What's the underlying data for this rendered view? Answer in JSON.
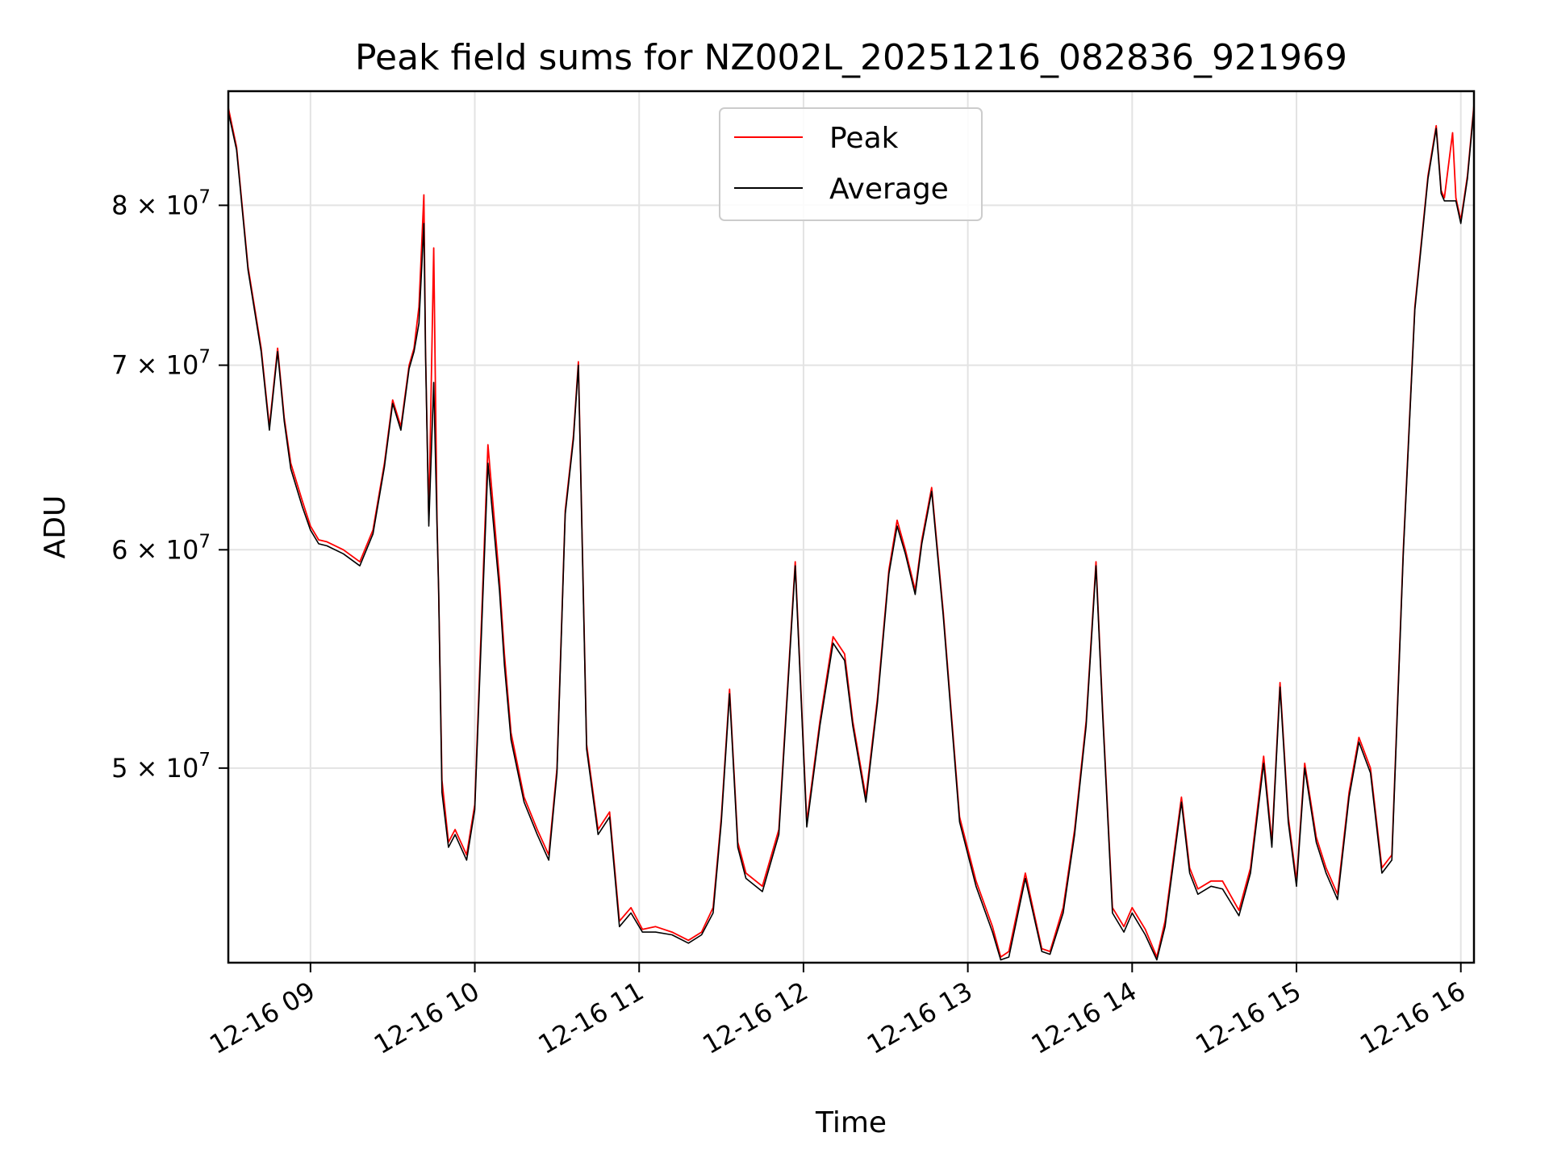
{
  "chart_data": {
    "type": "line",
    "title": "Peak field sums for NZ002L_20251216_082836_921969",
    "xlabel": "Time",
    "ylabel": "ADU",
    "yscale": "log",
    "ylim": [
      42500000,
      88000000
    ],
    "xlim": [
      8.5,
      16.08
    ],
    "grid": true,
    "legend_position": "top-center",
    "x_ticks": [
      {
        "value": 9,
        "label": "12-16 09"
      },
      {
        "value": 10,
        "label": "12-16 10"
      },
      {
        "value": 11,
        "label": "12-16 11"
      },
      {
        "value": 12,
        "label": "12-16 12"
      },
      {
        "value": 13,
        "label": "12-16 13"
      },
      {
        "value": 14,
        "label": "12-16 14"
      },
      {
        "value": 15,
        "label": "12-16 15"
      },
      {
        "value": 16,
        "label": "12-16 16"
      }
    ],
    "y_ticks": [
      {
        "value": 50000000,
        "base": "5",
        "exp": "7"
      },
      {
        "value": 60000000,
        "base": "6",
        "exp": "7"
      },
      {
        "value": 70000000,
        "base": "7",
        "exp": "7"
      },
      {
        "value": 80000000,
        "base": "8",
        "exp": "7"
      }
    ],
    "series": [
      {
        "name": "Peak",
        "color": "#ff0000",
        "x": [
          8.5,
          8.55,
          8.62,
          8.7,
          8.75,
          8.8,
          8.84,
          8.88,
          8.95,
          9.0,
          9.05,
          9.1,
          9.2,
          9.3,
          9.38,
          9.45,
          9.5,
          9.55,
          9.6,
          9.63,
          9.66,
          9.69,
          9.7,
          9.72,
          9.75,
          9.77,
          9.78,
          9.8,
          9.84,
          9.88,
          9.95,
          10.0,
          10.08,
          10.15,
          10.18,
          10.22,
          10.3,
          10.38,
          10.45,
          10.5,
          10.55,
          10.6,
          10.63,
          10.68,
          10.75,
          10.82,
          10.88,
          10.95,
          11.02,
          11.1,
          11.2,
          11.3,
          11.38,
          11.45,
          11.5,
          11.55,
          11.6,
          11.65,
          11.75,
          11.85,
          11.95,
          12.02,
          12.1,
          12.18,
          12.25,
          12.3,
          12.38,
          12.45,
          12.52,
          12.57,
          12.62,
          12.68,
          12.72,
          12.78,
          12.85,
          12.95,
          13.05,
          13.15,
          13.2,
          13.25,
          13.35,
          13.45,
          13.5,
          13.58,
          13.65,
          13.72,
          13.78,
          13.82,
          13.88,
          13.95,
          14.0,
          14.08,
          14.15,
          14.2,
          14.3,
          14.35,
          14.4,
          14.48,
          14.55,
          14.65,
          14.72,
          14.8,
          14.85,
          14.9,
          14.95,
          15.0,
          15.05,
          15.12,
          15.18,
          15.25,
          15.32,
          15.38,
          15.45,
          15.52,
          15.58,
          15.65,
          15.72,
          15.8,
          15.85,
          15.88,
          15.9,
          15.95,
          15.97,
          16.0,
          16.04,
          16.08
        ],
        "y": [
          86800000,
          84000000,
          76000000,
          71000000,
          66500000,
          71000000,
          67000000,
          64500000,
          62500000,
          61200000,
          60500000,
          60400000,
          60000000,
          59400000,
          61000000,
          64500000,
          68000000,
          66500000,
          70000000,
          71000000,
          73500000,
          80700000,
          71000000,
          61500000,
          77200000,
          61500000,
          58000000,
          49500000,
          47000000,
          47500000,
          46500000,
          48500000,
          65500000,
          58500000,
          55000000,
          51500000,
          48800000,
          47500000,
          46500000,
          50000000,
          62000000,
          66000000,
          70200000,
          51000000,
          47500000,
          48200000,
          44000000,
          44500000,
          43700000,
          43800000,
          43600000,
          43300000,
          43600000,
          44500000,
          48000000,
          53400000,
          47000000,
          45800000,
          45300000,
          47500000,
          59400000,
          47800000,
          52000000,
          55800000,
          55000000,
          52000000,
          48800000,
          53000000,
          59000000,
          61500000,
          60000000,
          58000000,
          60500000,
          63200000,
          57000000,
          48000000,
          45500000,
          43800000,
          42700000,
          42900000,
          45800000,
          43000000,
          42900000,
          44500000,
          47500000,
          52000000,
          59400000,
          52500000,
          44500000,
          43800000,
          44500000,
          43700000,
          42700000,
          44000000,
          48800000,
          46000000,
          45200000,
          45500000,
          45500000,
          44400000,
          46000000,
          50500000,
          47000000,
          53700000,
          48000000,
          45500000,
          50200000,
          47200000,
          46000000,
          45000000,
          49000000,
          51300000,
          50000000,
          46000000,
          46500000,
          60000000,
          73500000,
          82000000,
          85500000,
          81000000,
          80500000,
          85000000,
          80500000,
          79000000,
          82000000,
          87000000
        ]
      },
      {
        "name": "Average",
        "color": "#000000",
        "x": [
          8.5,
          8.55,
          8.62,
          8.7,
          8.75,
          8.8,
          8.84,
          8.88,
          8.95,
          9.0,
          9.05,
          9.1,
          9.2,
          9.3,
          9.38,
          9.45,
          9.5,
          9.55,
          9.6,
          9.63,
          9.66,
          9.69,
          9.7,
          9.72,
          9.75,
          9.77,
          9.78,
          9.8,
          9.84,
          9.88,
          9.95,
          10.0,
          10.08,
          10.15,
          10.18,
          10.22,
          10.3,
          10.38,
          10.45,
          10.5,
          10.55,
          10.6,
          10.63,
          10.68,
          10.75,
          10.82,
          10.88,
          10.95,
          11.02,
          11.1,
          11.2,
          11.3,
          11.38,
          11.45,
          11.5,
          11.55,
          11.6,
          11.65,
          11.75,
          11.85,
          11.95,
          12.02,
          12.1,
          12.18,
          12.25,
          12.3,
          12.38,
          12.45,
          12.52,
          12.57,
          12.62,
          12.68,
          12.72,
          12.78,
          12.85,
          12.95,
          13.05,
          13.15,
          13.2,
          13.25,
          13.35,
          13.45,
          13.5,
          13.58,
          13.65,
          13.72,
          13.78,
          13.82,
          13.88,
          13.95,
          14.0,
          14.08,
          14.15,
          14.2,
          14.3,
          14.35,
          14.4,
          14.48,
          14.55,
          14.65,
          14.72,
          14.8,
          14.85,
          14.9,
          14.95,
          15.0,
          15.05,
          15.12,
          15.18,
          15.25,
          15.32,
          15.38,
          15.45,
          15.52,
          15.58,
          15.65,
          15.72,
          15.8,
          15.85,
          15.88,
          15.9,
          15.95,
          15.97,
          16.0,
          16.04,
          16.08
        ],
        "y": [
          86500000,
          83800000,
          75800000,
          70800000,
          66300000,
          70800000,
          66800000,
          64200000,
          62200000,
          61000000,
          60300000,
          60200000,
          59800000,
          59200000,
          60800000,
          64300000,
          67800000,
          66300000,
          69800000,
          70800000,
          72500000,
          78800000,
          70800000,
          61200000,
          69000000,
          61200000,
          58000000,
          49000000,
          46800000,
          47300000,
          46300000,
          48300000,
          64500000,
          58000000,
          54500000,
          51200000,
          48600000,
          47300000,
          46300000,
          49800000,
          61800000,
          65800000,
          70000000,
          50800000,
          47300000,
          48000000,
          43800000,
          44300000,
          43600000,
          43600000,
          43500000,
          43200000,
          43500000,
          44300000,
          47800000,
          53200000,
          46800000,
          45600000,
          45100000,
          47300000,
          59200000,
          47600000,
          51800000,
          55500000,
          54700000,
          51800000,
          48600000,
          52800000,
          58800000,
          61200000,
          59800000,
          57800000,
          60300000,
          63000000,
          56800000,
          47800000,
          45300000,
          43600000,
          42600000,
          42700000,
          45600000,
          42900000,
          42800000,
          44300000,
          47300000,
          51800000,
          59200000,
          52300000,
          44300000,
          43600000,
          44300000,
          43500000,
          42600000,
          43800000,
          48600000,
          45800000,
          45000000,
          45300000,
          45200000,
          44200000,
          45800000,
          50200000,
          46800000,
          53500000,
          47800000,
          45300000,
          50000000,
          47000000,
          45800000,
          44800000,
          48800000,
          51100000,
          49800000,
          45800000,
          46300000,
          59800000,
          73300000,
          81800000,
          85300000,
          80800000,
          80300000,
          80300000,
          80300000,
          78800000,
          81800000,
          86800000
        ]
      }
    ]
  }
}
